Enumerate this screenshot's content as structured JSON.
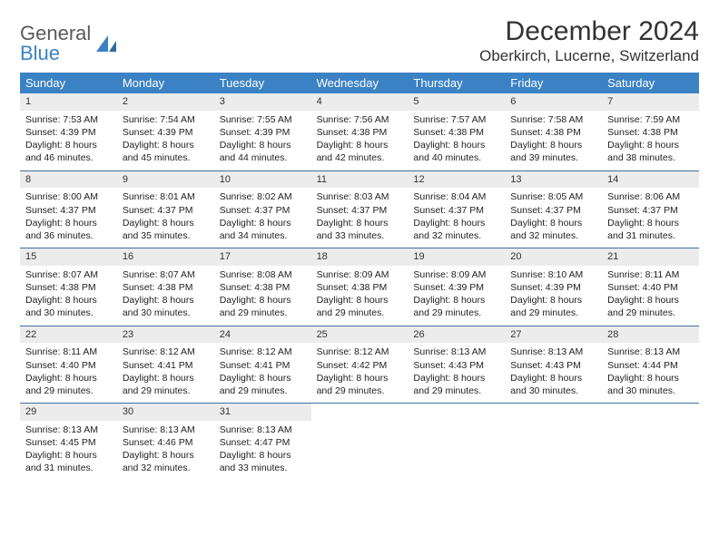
{
  "brand": {
    "word1": "General",
    "word2": "Blue"
  },
  "title": "December 2024",
  "location": "Oberkirch, Lucerne, Switzerland",
  "colors": {
    "header_bg": "#3b82c4",
    "header_text": "#ffffff",
    "daynum_bg": "#ececec",
    "week_border": "#3b6fa0",
    "body_text": "#222222",
    "brand_gray": "#5a5a5a",
    "brand_blue": "#3b82c4"
  },
  "weekdays": [
    "Sunday",
    "Monday",
    "Tuesday",
    "Wednesday",
    "Thursday",
    "Friday",
    "Saturday"
  ],
  "weeks": [
    [
      {
        "n": "1",
        "sr": "7:53 AM",
        "ss": "4:39 PM",
        "dl": "8 hours and 46 minutes."
      },
      {
        "n": "2",
        "sr": "7:54 AM",
        "ss": "4:39 PM",
        "dl": "8 hours and 45 minutes."
      },
      {
        "n": "3",
        "sr": "7:55 AM",
        "ss": "4:39 PM",
        "dl": "8 hours and 44 minutes."
      },
      {
        "n": "4",
        "sr": "7:56 AM",
        "ss": "4:38 PM",
        "dl": "8 hours and 42 minutes."
      },
      {
        "n": "5",
        "sr": "7:57 AM",
        "ss": "4:38 PM",
        "dl": "8 hours and 40 minutes."
      },
      {
        "n": "6",
        "sr": "7:58 AM",
        "ss": "4:38 PM",
        "dl": "8 hours and 39 minutes."
      },
      {
        "n": "7",
        "sr": "7:59 AM",
        "ss": "4:38 PM",
        "dl": "8 hours and 38 minutes."
      }
    ],
    [
      {
        "n": "8",
        "sr": "8:00 AM",
        "ss": "4:37 PM",
        "dl": "8 hours and 36 minutes."
      },
      {
        "n": "9",
        "sr": "8:01 AM",
        "ss": "4:37 PM",
        "dl": "8 hours and 35 minutes."
      },
      {
        "n": "10",
        "sr": "8:02 AM",
        "ss": "4:37 PM",
        "dl": "8 hours and 34 minutes."
      },
      {
        "n": "11",
        "sr": "8:03 AM",
        "ss": "4:37 PM",
        "dl": "8 hours and 33 minutes."
      },
      {
        "n": "12",
        "sr": "8:04 AM",
        "ss": "4:37 PM",
        "dl": "8 hours and 32 minutes."
      },
      {
        "n": "13",
        "sr": "8:05 AM",
        "ss": "4:37 PM",
        "dl": "8 hours and 32 minutes."
      },
      {
        "n": "14",
        "sr": "8:06 AM",
        "ss": "4:37 PM",
        "dl": "8 hours and 31 minutes."
      }
    ],
    [
      {
        "n": "15",
        "sr": "8:07 AM",
        "ss": "4:38 PM",
        "dl": "8 hours and 30 minutes."
      },
      {
        "n": "16",
        "sr": "8:07 AM",
        "ss": "4:38 PM",
        "dl": "8 hours and 30 minutes."
      },
      {
        "n": "17",
        "sr": "8:08 AM",
        "ss": "4:38 PM",
        "dl": "8 hours and 29 minutes."
      },
      {
        "n": "18",
        "sr": "8:09 AM",
        "ss": "4:38 PM",
        "dl": "8 hours and 29 minutes."
      },
      {
        "n": "19",
        "sr": "8:09 AM",
        "ss": "4:39 PM",
        "dl": "8 hours and 29 minutes."
      },
      {
        "n": "20",
        "sr": "8:10 AM",
        "ss": "4:39 PM",
        "dl": "8 hours and 29 minutes."
      },
      {
        "n": "21",
        "sr": "8:11 AM",
        "ss": "4:40 PM",
        "dl": "8 hours and 29 minutes."
      }
    ],
    [
      {
        "n": "22",
        "sr": "8:11 AM",
        "ss": "4:40 PM",
        "dl": "8 hours and 29 minutes."
      },
      {
        "n": "23",
        "sr": "8:12 AM",
        "ss": "4:41 PM",
        "dl": "8 hours and 29 minutes."
      },
      {
        "n": "24",
        "sr": "8:12 AM",
        "ss": "4:41 PM",
        "dl": "8 hours and 29 minutes."
      },
      {
        "n": "25",
        "sr": "8:12 AM",
        "ss": "4:42 PM",
        "dl": "8 hours and 29 minutes."
      },
      {
        "n": "26",
        "sr": "8:13 AM",
        "ss": "4:43 PM",
        "dl": "8 hours and 29 minutes."
      },
      {
        "n": "27",
        "sr": "8:13 AM",
        "ss": "4:43 PM",
        "dl": "8 hours and 30 minutes."
      },
      {
        "n": "28",
        "sr": "8:13 AM",
        "ss": "4:44 PM",
        "dl": "8 hours and 30 minutes."
      }
    ],
    [
      {
        "n": "29",
        "sr": "8:13 AM",
        "ss": "4:45 PM",
        "dl": "8 hours and 31 minutes."
      },
      {
        "n": "30",
        "sr": "8:13 AM",
        "ss": "4:46 PM",
        "dl": "8 hours and 32 minutes."
      },
      {
        "n": "31",
        "sr": "8:13 AM",
        "ss": "4:47 PM",
        "dl": "8 hours and 33 minutes."
      },
      {
        "empty": true
      },
      {
        "empty": true
      },
      {
        "empty": true
      },
      {
        "empty": true
      }
    ]
  ],
  "labels": {
    "sunrise": "Sunrise: ",
    "sunset": "Sunset: ",
    "daylight": "Daylight: "
  }
}
